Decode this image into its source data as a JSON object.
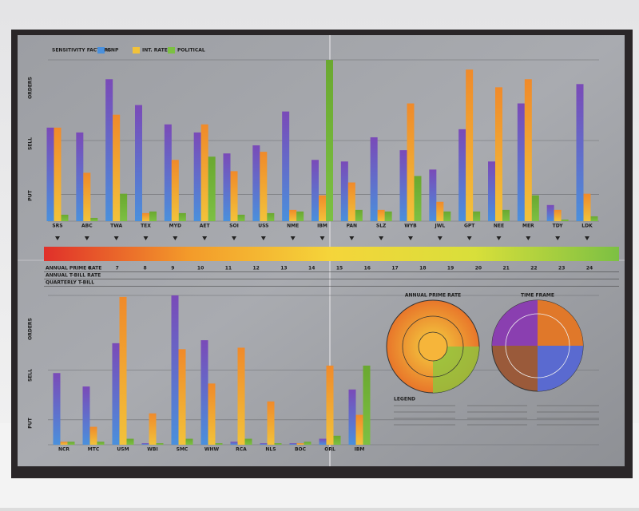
{
  "sensitivity": {
    "label": "SENSITIVITY FACTORS",
    "factors": [
      {
        "name": "GNP",
        "color": "#4a90dc"
      },
      {
        "name": "INT. RATE",
        "color": "#f2c23a"
      },
      {
        "name": "POLITICAL",
        "color": "#7cc043"
      }
    ]
  },
  "top_chart": {
    "axis_labels": [
      "ORDERS",
      "SELL",
      "PUT"
    ],
    "companies": [
      {
        "name": "SRS",
        "values": [
          58,
          58,
          4
        ]
      },
      {
        "name": "ABC",
        "values": [
          55,
          30,
          2
        ]
      },
      {
        "name": "TWA",
        "values": [
          88,
          66,
          17
        ]
      },
      {
        "name": "TEX",
        "values": [
          72,
          5,
          6
        ]
      },
      {
        "name": "MYD",
        "values": [
          60,
          38,
          5
        ]
      },
      {
        "name": "AET",
        "values": [
          55,
          60,
          40
        ]
      },
      {
        "name": "SOI",
        "values": [
          42,
          31,
          4
        ]
      },
      {
        "name": "USS",
        "values": [
          47,
          43,
          5
        ]
      },
      {
        "name": "NME",
        "values": [
          68,
          7,
          6
        ]
      },
      {
        "name": "IBM",
        "values": [
          38,
          16,
          100
        ]
      },
      {
        "name": "PAN",
        "values": [
          37,
          24,
          7
        ]
      },
      {
        "name": "SLZ",
        "values": [
          52,
          7,
          6
        ]
      },
      {
        "name": "WYB",
        "values": [
          44,
          73,
          28
        ]
      },
      {
        "name": "JWL",
        "values": [
          32,
          12,
          6
        ]
      },
      {
        "name": "GPT",
        "values": [
          57,
          94,
          6
        ]
      },
      {
        "name": "NEE",
        "values": [
          37,
          83,
          7
        ]
      },
      {
        "name": "MER",
        "values": [
          73,
          88,
          16
        ]
      },
      {
        "name": "TDY",
        "values": [
          10,
          7,
          1
        ]
      },
      {
        "name": "LDK",
        "values": [
          85,
          17,
          3
        ]
      }
    ]
  },
  "rate_table": {
    "rows": [
      "ANNUAL PRIME RATE",
      "ANNUAL T-BILL RATE",
      "QUARTERLY T-BILL"
    ],
    "prime_rates": [
      6,
      7,
      8,
      9,
      10,
      11,
      12,
      13,
      14,
      15,
      16,
      17,
      18,
      19,
      20,
      21,
      22,
      23,
      24
    ]
  },
  "bottom_chart": {
    "axis_labels": [
      "ORDERS",
      "SELL",
      "PUT"
    ],
    "companies": [
      {
        "name": "NCR",
        "values": [
          48,
          2,
          2
        ]
      },
      {
        "name": "MTC",
        "values": [
          39,
          12,
          2
        ]
      },
      {
        "name": "USM",
        "values": [
          68,
          99,
          4
        ]
      },
      {
        "name": "WBI",
        "values": [
          1,
          21,
          1
        ]
      },
      {
        "name": "SMC",
        "values": [
          100,
          64,
          4
        ]
      },
      {
        "name": "WHW",
        "values": [
          70,
          41,
          1
        ]
      },
      {
        "name": "RCA",
        "values": [
          2,
          65,
          4
        ]
      },
      {
        "name": "NLS",
        "values": [
          1,
          29,
          1
        ]
      },
      {
        "name": "BOC",
        "values": [
          1,
          1,
          2
        ]
      },
      {
        "name": "ORL",
        "values": [
          4,
          53,
          6
        ]
      },
      {
        "name": "IBM",
        "values": [
          37,
          20,
          53
        ]
      }
    ]
  },
  "wheels": [
    {
      "title": "ANNUAL PRIME RATE"
    },
    {
      "title": "TIME FRAME"
    }
  ],
  "legend": {
    "title": "LEGEND"
  }
}
